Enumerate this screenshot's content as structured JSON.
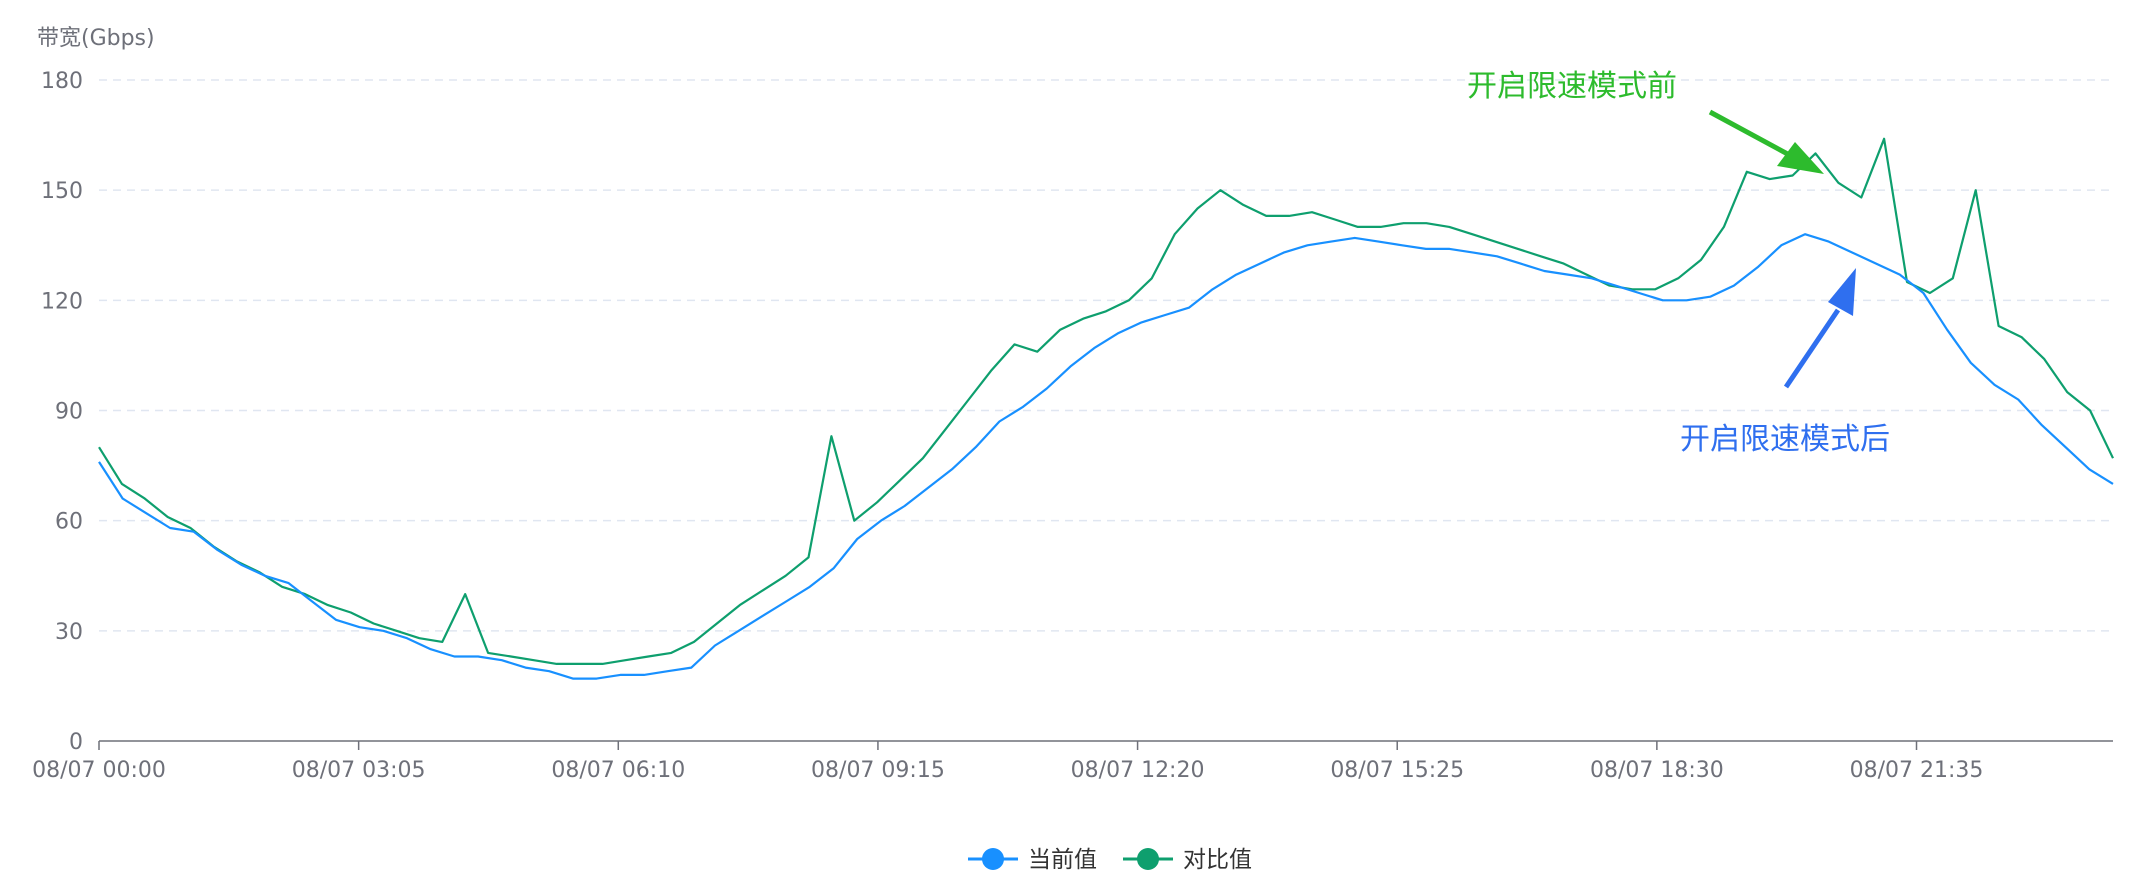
{
  "chart_data": {
    "type": "line",
    "ylabel": "带宽(Gbps)",
    "xlabel": "",
    "ylim": [
      0,
      180
    ],
    "yticks": [
      0,
      30,
      60,
      90,
      120,
      150,
      180
    ],
    "xticks": [
      "08/07 00:00",
      "08/07 03:05",
      "08/07 06:10",
      "08/07 09:15",
      "08/07 12:20",
      "08/07 15:25",
      "08/07 18:30",
      "08/07 21:35"
    ],
    "x_range": [
      "08/07 00:00",
      "08/07 23:55"
    ],
    "grid": "horizontal dashed",
    "legend_position": "bottom",
    "series": [
      {
        "name": "当前值",
        "color": "#1890ff",
        "values": [
          76,
          66,
          62,
          58,
          57,
          52,
          48,
          45,
          43,
          38,
          33,
          31,
          30,
          28,
          25,
          23,
          23,
          22,
          20,
          19,
          17,
          17,
          18,
          18,
          19,
          20,
          26,
          30,
          34,
          38,
          42,
          47,
          55,
          60,
          64,
          69,
          74,
          80,
          87,
          91,
          96,
          102,
          107,
          111,
          114,
          116,
          118,
          123,
          127,
          130,
          133,
          135,
          136,
          137,
          136,
          135,
          134,
          134,
          133,
          132,
          130,
          128,
          127,
          126,
          124,
          122,
          120,
          120,
          121,
          124,
          129,
          135,
          138,
          136,
          133,
          130,
          127,
          122,
          112,
          103,
          97,
          93,
          86,
          80,
          74,
          70
        ]
      },
      {
        "name": "对比值",
        "color": "#0e9f6e",
        "values": [
          80,
          70,
          66,
          61,
          58,
          53,
          49,
          46,
          42,
          40,
          37,
          35,
          32,
          30,
          28,
          27,
          40,
          24,
          23,
          22,
          21,
          21,
          21,
          22,
          23,
          24,
          27,
          32,
          37,
          41,
          45,
          50,
          83,
          60,
          65,
          71,
          77,
          85,
          93,
          101,
          108,
          106,
          112,
          115,
          117,
          120,
          126,
          138,
          145,
          150,
          146,
          143,
          143,
          144,
          142,
          140,
          140,
          141,
          141,
          140,
          138,
          136,
          134,
          132,
          130,
          127,
          124,
          123,
          123,
          126,
          131,
          140,
          155,
          153,
          154,
          160,
          152,
          148,
          164,
          125,
          122,
          126,
          150,
          113,
          110,
          104,
          95,
          90,
          77
        ]
      }
    ],
    "annotations": [
      {
        "text": "开启限速模式前",
        "color": "#2dbb2d"
      },
      {
        "text": "开启限速模式后",
        "color": "#2f6fef"
      }
    ]
  }
}
